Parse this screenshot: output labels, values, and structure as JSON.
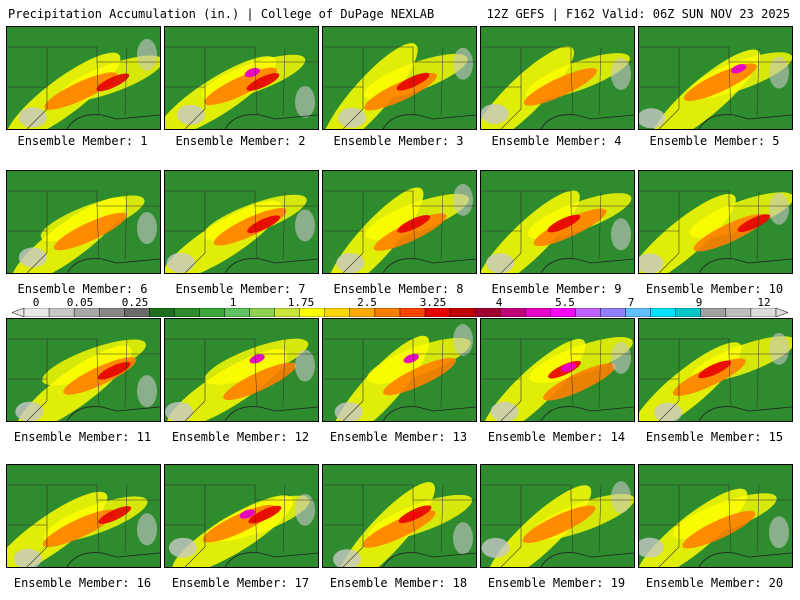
{
  "header": {
    "left": "Precipitation Accumulation (in.) | College of DuPage NEXLAB",
    "right": "12Z GEFS | F162 Valid: 06Z SUN NOV 23 2025"
  },
  "member_prefix": "Ensemble Member: ",
  "members": [
    1,
    2,
    3,
    4,
    5,
    6,
    7,
    8,
    9,
    10,
    11,
    12,
    13,
    14,
    15,
    16,
    17,
    18,
    19,
    20
  ],
  "colorbar": {
    "tick_labels": [
      "0",
      "0.05",
      "0.25",
      "1",
      "1.75",
      "2.5",
      "3.25",
      "4",
      "5.5",
      "7",
      "9",
      "12"
    ],
    "colors": [
      "#e8e8e8",
      "#c8c8c8",
      "#a8a8a8",
      "#888888",
      "#6a6a6a",
      "#1f6e1f",
      "#2e8b2e",
      "#3ca83c",
      "#5fc05f",
      "#8fd14f",
      "#c8e63c",
      "#ffff00",
      "#ffd700",
      "#ffaa00",
      "#ff7f00",
      "#ff4500",
      "#e60000",
      "#c00000",
      "#a00030",
      "#c0007a",
      "#e600c8",
      "#ff00ff",
      "#c060ff",
      "#9080ff",
      "#60c0ff",
      "#00e0ff",
      "#00c8c8",
      "#a0a0a0",
      "#bfbfbf",
      "#dcdcdc"
    ]
  },
  "map_colors": {
    "dry": "#2e8b2e",
    "light": "#c8c8c8",
    "moderate": "#ffff00",
    "heavy": "#ff7f00",
    "very_heavy": "#e60000",
    "extreme": "#e600c8"
  }
}
